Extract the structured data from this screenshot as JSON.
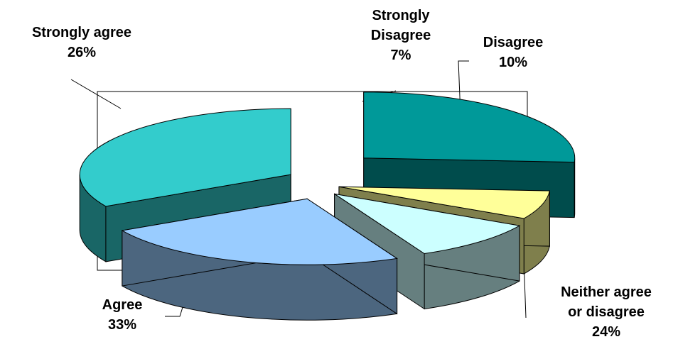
{
  "chart_data": {
    "type": "pie",
    "title": "",
    "slices": [
      {
        "name": "Strongly agree",
        "percent_label": "26%",
        "value": 26,
        "label_lines": [
          "Strongly agree"
        ],
        "top_color": "#009999",
        "side_color": "#004C4C"
      },
      {
        "name": "Strongly Disagree",
        "percent_label": "7%",
        "value": 7,
        "label_lines": [
          "Strongly",
          "Disagree"
        ],
        "top_color": "#FFFF99",
        "side_color": "#7F7F4C"
      },
      {
        "name": "Disagree",
        "percent_label": "10%",
        "value": 10,
        "label_lines": [
          "Disagree"
        ],
        "top_color": "#CCFFFF",
        "side_color": "#667F7F"
      },
      {
        "name": "Neither agree or disagree",
        "percent_label": "24%",
        "value": 24,
        "label_lines": [
          "Neither agree",
          "or disagree"
        ],
        "top_color": "#99CCFF",
        "side_color": "#4C667F"
      },
      {
        "name": "Agree",
        "percent_label": "33%",
        "value": 33,
        "label_lines": [
          "Agree"
        ],
        "top_color": "#33CCCC",
        "side_color": "#196666"
      }
    ],
    "style": "3d-exploded-pie",
    "legend": "none"
  }
}
